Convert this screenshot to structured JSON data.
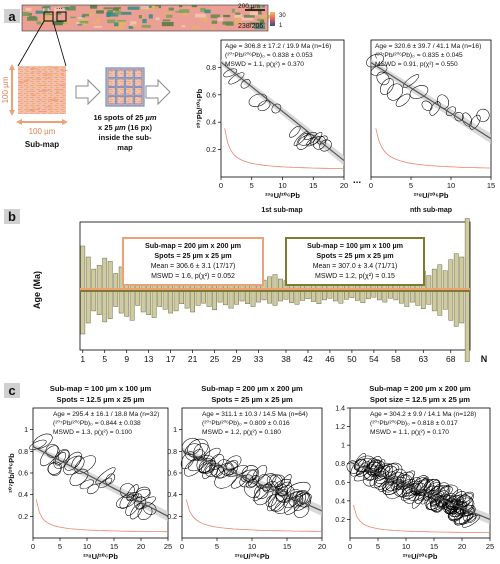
{
  "colors": {
    "orange": "#f0a077",
    "olive": "#807a2e",
    "bar_fill": "#cfcba0",
    "bar_stroke": "#6d6a45",
    "pink": "#e4a0a0",
    "green": "#5f8a4d",
    "teal": "#2f8c88",
    "panel_label_bg": "#dcdcdc",
    "sub_blue": "#6f8fc8",
    "regline": "#555555",
    "band": "#c9c9c9",
    "concordia": "#e8846a"
  },
  "panel_a": {
    "label": "a",
    "scale_label": "200 µm",
    "ratio_label": "238/206",
    "colorbar_top": "30",
    "colorbar_bottom": "1",
    "dots": "...",
    "submap_axis_label": "100 µm",
    "submap_label": "Sub-map",
    "spots_caption": "16 spots of 25 µm x 25 µm (16 px) inside the sub-map",
    "ellipsis": "...",
    "plots": [
      {
        "age": "Age = 306.8 ± 17.2 / 19.9 Ma (n=16)",
        "pb0": "(²⁰⁷Pb/²⁰⁶Pb)₀ = 0.838 ± 0.053",
        "mswd": "MSWD = 1.1, p(χ²) = 0.370",
        "subtitle": "1st sub-map"
      },
      {
        "age": "Age = 320.6 ± 39.7 / 41.1 Ma (n=16)",
        "pb0": "(²⁰⁷Pb/²⁰⁶Pb)₀ = 0.835 ± 0.045",
        "mswd": "MSWD = 0.91, p(χ²) = 0.550",
        "subtitle": "nth sub-map"
      }
    ]
  },
  "panel_b": {
    "label": "b",
    "box1": {
      "title": "Sub-map = 200 µm x 200 µm",
      "spots": "Spots = 25 µm x 25 µm",
      "mean": "Mean = 306.6 ± 3.1 (17/17)",
      "mswd": "MSWD = 1.6, p(χ²) = 0.052"
    },
    "box2": {
      "title": "Sub-map = 100 µm x 100 µm",
      "spots": "Spots = 25 µm x 25 µm",
      "mean": "Mean = 307.0 ± 3.4 (71/71)",
      "mswd": "MSWD = 1.2, p(χ²) = 0.15"
    },
    "ylabel": "Age (Ma)",
    "xlabel": "N"
  },
  "panel_c": {
    "label": "c",
    "plots": [
      {
        "title1": "Sub-map = 100 µm x 100 µm",
        "title2": "Spots = 12.5 µm x 25 µm",
        "age": "Age = 295.4 ± 16.1 / 18.8 Ma (n=32)",
        "pb0": "(²⁰⁷Pb/²⁰⁶Pb)₀ = 0.844 ± 0.038",
        "mswd": "MSWD = 1.3, p(χ²) = 0.100"
      },
      {
        "title1": "Sub-map = 200 µm x 200 µm",
        "title2": "Spots = 25 µm x 25 µm",
        "age": "Age = 311.1 ± 10.3 / 14.5 Ma (n=64)",
        "pb0": "(²⁰⁷Pb/²⁰⁶Pb)₀ = 0.809 ± 0.016",
        "mswd": "MSWD = 1.2, p(χ²) = 0.180"
      },
      {
        "title1": "Sub-map = 200 µm x 200 µm",
        "title2": "Spot size = 12.5 µm x 25 µm",
        "age": "Age = 304.2 ± 9.9 / 14.1 Ma (n=128)",
        "pb0": "(²⁰⁷Pb/²⁰⁶Pb)₀ = 0.818 ± 0.017",
        "mswd": "MSWD = 1.1, p(χ²) = 0.170"
      }
    ]
  },
  "axis_text": {
    "y": "²⁰⁷Pb/²⁰⁶Pb",
    "x": "²³⁸U/²⁰⁶Pb"
  },
  "chart_data": [
    {
      "type": "scatter",
      "title": "",
      "ylabel": "²⁰⁷Pb/²⁰⁶Pb",
      "xlabel": "²³⁸U/²⁰⁶Pb",
      "subtitle": "1st sub-map",
      "xlim": [
        0,
        20
      ],
      "ylim": [
        0,
        1.0
      ],
      "xticks": [
        0,
        5,
        10,
        15,
        20
      ],
      "yticks": [
        0.2,
        0.4,
        0.6,
        0.8
      ],
      "regression": {
        "x0": 0,
        "y0": 0.838,
        "x1": 20,
        "y1": 0.12
      },
      "ellipses": [
        [
          1.5,
          0.76
        ],
        [
          2.5,
          0.72
        ],
        [
          4,
          0.68
        ],
        [
          6,
          0.56
        ],
        [
          7,
          0.52
        ],
        [
          9,
          0.5
        ],
        [
          12,
          0.33
        ],
        [
          13,
          0.28
        ],
        [
          14,
          0.27
        ],
        [
          15,
          0.26
        ],
        [
          15.5,
          0.28
        ],
        [
          16,
          0.25
        ],
        [
          14.5,
          0.3
        ],
        [
          13.5,
          0.26
        ],
        [
          17,
          0.23
        ],
        [
          16.5,
          0.27
        ]
      ]
    },
    {
      "type": "scatter",
      "title": "",
      "ylabel": "²⁰⁷Pb/²⁰⁶Pb",
      "xlabel": "²³⁸U/²⁰⁶Pb",
      "subtitle": "nth sub-map",
      "xlim": [
        0,
        15
      ],
      "ylim": [
        0,
        1.0
      ],
      "xticks": [
        0,
        5,
        10,
        15
      ],
      "yticks": [],
      "regression": {
        "x0": 0,
        "y0": 0.835,
        "x1": 15,
        "y1": 0.28
      },
      "ellipses": [
        [
          0.5,
          0.85
        ],
        [
          1,
          0.78
        ],
        [
          1.5,
          0.72
        ],
        [
          2,
          0.66
        ],
        [
          3,
          0.62
        ],
        [
          4,
          0.56
        ],
        [
          5,
          0.7
        ],
        [
          6,
          0.62
        ],
        [
          7,
          0.52
        ],
        [
          8,
          0.5
        ],
        [
          9,
          0.55
        ],
        [
          10,
          0.48
        ],
        [
          11,
          0.44
        ],
        [
          12,
          0.42
        ],
        [
          13,
          0.4
        ],
        [
          14,
          0.45
        ]
      ]
    },
    {
      "type": "bar",
      "title": "",
      "ylabel": "Age (Ma)",
      "xlabel": "N",
      "categories": [
        1,
        5,
        9,
        13,
        17,
        21,
        25,
        29,
        33,
        38,
        42,
        46,
        50,
        54,
        58,
        63,
        68
      ],
      "n_bars": 71,
      "mean": 307.0,
      "half_heights": [
        80,
        60,
        38,
        45,
        58,
        52,
        30,
        42,
        48,
        55,
        28,
        40,
        45,
        50,
        30,
        35,
        42,
        38,
        25,
        33,
        40,
        28,
        24,
        30,
        36,
        22,
        27,
        33,
        26,
        20,
        25,
        30,
        22,
        18,
        24,
        28,
        20,
        17,
        23,
        26,
        19,
        16,
        21,
        25,
        18,
        15,
        20,
        24,
        17,
        14,
        19,
        23,
        16,
        13,
        18,
        22,
        15,
        18,
        24,
        30,
        22,
        28,
        34,
        26,
        38,
        46,
        35,
        55,
        66,
        60,
        130
      ]
    },
    {
      "type": "scatter",
      "title": "Sub-map = 100 µm x 100 µm",
      "ylabel": "²⁰⁷Pb/²⁰⁶Pb",
      "xlabel": "²³⁸U/²⁰⁶Pb",
      "xlim": [
        0,
        25
      ],
      "ylim": [
        0,
        1.2
      ],
      "xticks": [
        0,
        5,
        10,
        15,
        20,
        25
      ],
      "yticks": [
        0.2,
        0.4,
        0.6,
        0.8,
        1.0
      ],
      "regression": {
        "x0": 0,
        "y0": 0.844,
        "x1": 25,
        "y1": 0.2
      },
      "n": 32
    },
    {
      "type": "scatter",
      "title": "Sub-map = 200 µm x 200 µm",
      "ylabel": "²⁰⁷Pb/²⁰⁶Pb",
      "xlabel": "²³⁸U/²⁰⁶Pb",
      "xlim": [
        0,
        20
      ],
      "ylim": [
        0,
        1.2
      ],
      "xticks": [
        0,
        5,
        10,
        15,
        20
      ],
      "yticks": [
        0.2,
        0.4,
        0.6,
        0.8,
        1.0
      ],
      "regression": {
        "x0": 0,
        "y0": 0.809,
        "x1": 20,
        "y1": 0.25
      },
      "n": 64
    },
    {
      "type": "scatter",
      "title": "Sub-map = 200 µm x 200 µm",
      "ylabel": "²⁰⁷Pb/²⁰⁶Pb",
      "xlabel": "²³⁸U/²⁰⁶Pb",
      "xlim": [
        0,
        25
      ],
      "ylim": [
        0,
        1.4
      ],
      "xticks": [
        0,
        5,
        10,
        15,
        20,
        25
      ],
      "yticks": [
        0.2,
        0.4,
        0.6,
        0.8,
        1.0,
        1.2,
        1.4
      ],
      "regression": {
        "x0": 0,
        "y0": 0.818,
        "x1": 25,
        "y1": 0.2
      },
      "n": 128
    }
  ]
}
